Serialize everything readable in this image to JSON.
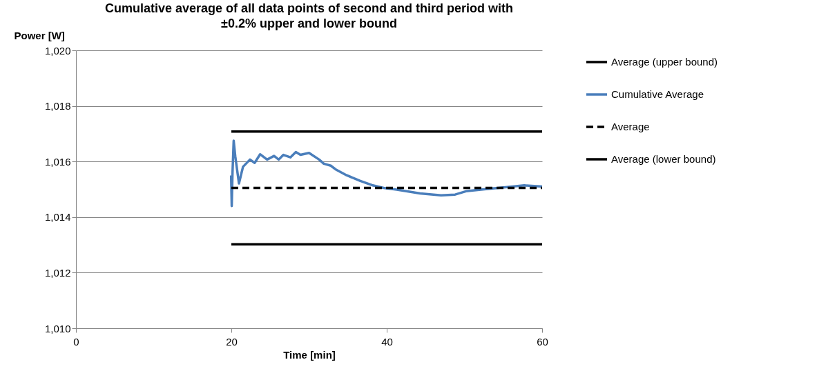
{
  "chart_data": {
    "type": "line",
    "title": "Cumulative average of all data points of second and third period with ±0.2% upper and lower bound",
    "xlabel": "Time [min]",
    "ylabel": "Power [W]",
    "xlim": [
      0,
      60
    ],
    "xticks": [
      0,
      20,
      40,
      60
    ],
    "ylim": [
      1010,
      1020
    ],
    "yticks": [
      {
        "value": 1010,
        "label": "1,010"
      },
      {
        "value": 1012,
        "label": "1,012"
      },
      {
        "value": 1014,
        "label": "1,014"
      },
      {
        "value": 1016,
        "label": "1,016"
      },
      {
        "value": 1018,
        "label": "1,018"
      },
      {
        "value": 1020,
        "label": "1,020"
      }
    ],
    "grid": "y",
    "legend": "right",
    "marker": "none",
    "series": [
      {
        "name": "Average (upper bound)",
        "color": "#000000",
        "line_style": "solid",
        "x": [
          20,
          60
        ],
        "values": [
          1017.08,
          1017.08
        ]
      },
      {
        "name": "Cumulative Average",
        "color": "#4a7ebb",
        "line_style": "solid",
        "x": [
          19.97,
          20.05,
          20.15,
          20.3,
          20.5,
          20.98,
          21.5,
          22.4,
          23.0,
          23.7,
          24.6,
          25.5,
          26.1,
          26.7,
          27.6,
          28.3,
          28.9,
          30.0,
          31.3,
          31.9,
          32.8,
          33.4,
          34.8,
          36.6,
          38.1,
          39.6,
          41.3,
          44.3,
          47.0,
          48.8,
          50.2,
          53.2,
          56.2,
          57.7,
          60
        ],
        "values": [
          1015.5,
          1014.4,
          1015.6,
          1016.75,
          1016.2,
          1015.21,
          1015.81,
          1016.07,
          1015.95,
          1016.26,
          1016.07,
          1016.2,
          1016.07,
          1016.24,
          1016.15,
          1016.34,
          1016.24,
          1016.31,
          1016.07,
          1015.92,
          1015.85,
          1015.72,
          1015.51,
          1015.3,
          1015.15,
          1015.05,
          1014.99,
          1014.85,
          1014.78,
          1014.81,
          1014.93,
          1015.02,
          1015.1,
          1015.14,
          1015.1
        ]
      },
      {
        "name": "Average",
        "color": "#000000",
        "line_style": "dashed",
        "x": [
          20,
          60
        ],
        "values": [
          1015.05,
          1015.05
        ]
      },
      {
        "name": "Average (lower bound)",
        "color": "#000000",
        "line_style": "solid",
        "x": [
          20,
          60
        ],
        "values": [
          1013.02,
          1013.02
        ]
      }
    ]
  }
}
